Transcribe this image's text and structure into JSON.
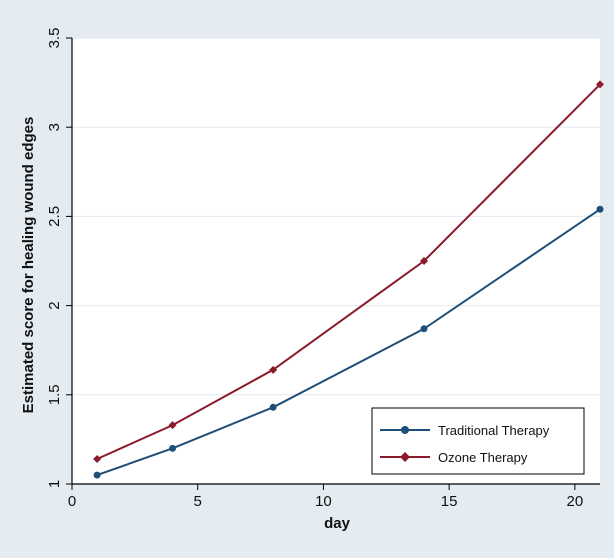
{
  "chart_data": {
    "type": "line",
    "xlabel": "day",
    "ylabel": "Estimated score for healing wound edges",
    "xlim": [
      0,
      21
    ],
    "ylim": [
      1,
      3.5
    ],
    "xticks": [
      "0",
      "5",
      "10",
      "15",
      "20"
    ],
    "yticks": [
      "1",
      "1.5",
      "2",
      "2.5",
      "3",
      "3.5"
    ],
    "grid": "horizontal",
    "legend_position": "bottom-right",
    "x": [
      1,
      4,
      8,
      14,
      21
    ],
    "series": [
      {
        "name": "Traditional Therapy",
        "color": "#1f4e79",
        "marker": "circle",
        "values": [
          1.05,
          1.2,
          1.43,
          1.87,
          2.54
        ]
      },
      {
        "name": "Ozone Therapy",
        "color": "#8b1a2b",
        "marker": "diamond",
        "values": [
          1.14,
          1.33,
          1.64,
          2.25,
          3.24
        ]
      }
    ]
  }
}
